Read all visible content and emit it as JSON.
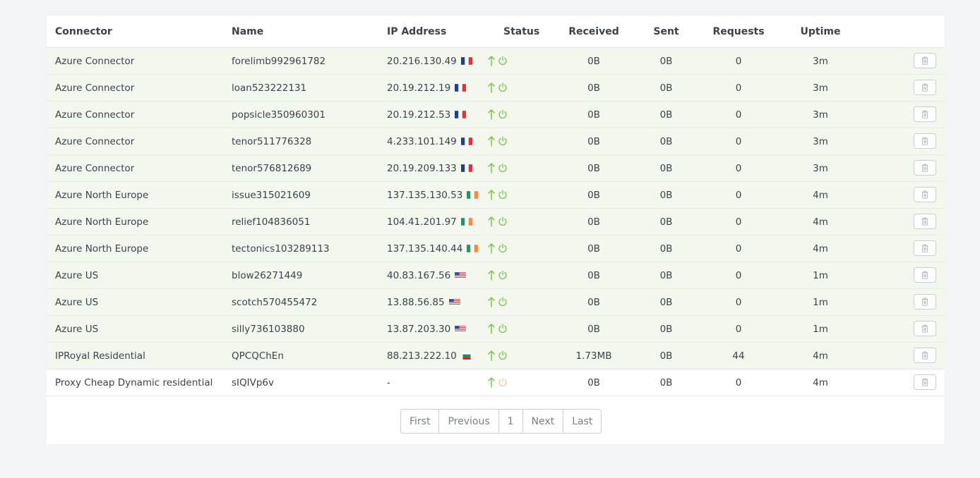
{
  "table": {
    "headers": {
      "connector": "Connector",
      "name": "Name",
      "ip": "IP Address",
      "status": "Status",
      "received": "Received",
      "sent": "Sent",
      "requests": "Requests",
      "uptime": "Uptime"
    },
    "rows": [
      {
        "connector": "Azure Connector",
        "name": "forelimb992961782",
        "ip": "20.216.130.49",
        "flag": "fr",
        "received": "0B",
        "sent": "0B",
        "requests": "0",
        "uptime": "3m",
        "active": true
      },
      {
        "connector": "Azure Connector",
        "name": "loan523222131",
        "ip": "20.19.212.19",
        "flag": "fr",
        "received": "0B",
        "sent": "0B",
        "requests": "0",
        "uptime": "3m",
        "active": true
      },
      {
        "connector": "Azure Connector",
        "name": "popsicle350960301",
        "ip": "20.19.212.53",
        "flag": "fr",
        "received": "0B",
        "sent": "0B",
        "requests": "0",
        "uptime": "3m",
        "active": true
      },
      {
        "connector": "Azure Connector",
        "name": "tenor511776328",
        "ip": "4.233.101.149",
        "flag": "fr",
        "received": "0B",
        "sent": "0B",
        "requests": "0",
        "uptime": "3m",
        "active": true
      },
      {
        "connector": "Azure Connector",
        "name": "tenor576812689",
        "ip": "20.19.209.133",
        "flag": "fr",
        "received": "0B",
        "sent": "0B",
        "requests": "0",
        "uptime": "3m",
        "active": true
      },
      {
        "connector": "Azure North Europe",
        "name": "issue315021609",
        "ip": "137.135.130.53",
        "flag": "ie",
        "received": "0B",
        "sent": "0B",
        "requests": "0",
        "uptime": "4m",
        "active": true
      },
      {
        "connector": "Azure North Europe",
        "name": "relief104836051",
        "ip": "104.41.201.97",
        "flag": "ie",
        "received": "0B",
        "sent": "0B",
        "requests": "0",
        "uptime": "4m",
        "active": true
      },
      {
        "connector": "Azure North Europe",
        "name": "tectonics103289113",
        "ip": "137.135.140.44",
        "flag": "ie",
        "received": "0B",
        "sent": "0B",
        "requests": "0",
        "uptime": "4m",
        "active": true
      },
      {
        "connector": "Azure US",
        "name": "blow26271449",
        "ip": "40.83.167.56",
        "flag": "us",
        "received": "0B",
        "sent": "0B",
        "requests": "0",
        "uptime": "1m",
        "active": true
      },
      {
        "connector": "Azure US",
        "name": "scotch570455472",
        "ip": "13.88.56.85",
        "flag": "us",
        "received": "0B",
        "sent": "0B",
        "requests": "0",
        "uptime": "1m",
        "active": true
      },
      {
        "connector": "Azure US",
        "name": "silly736103880",
        "ip": "13.87.203.30",
        "flag": "us",
        "received": "0B",
        "sent": "0B",
        "requests": "0",
        "uptime": "1m",
        "active": true
      },
      {
        "connector": "IPRoyal Residential",
        "name": "QPCQChEn",
        "ip": "88.213.222.10",
        "flag": "bg",
        "received": "1.73MB",
        "sent": "0B",
        "requests": "44",
        "uptime": "4m",
        "active": true
      },
      {
        "connector": "Proxy Cheap Dynamic residential",
        "name": "sIQIVp6v",
        "ip": "-",
        "flag": "",
        "received": "0B",
        "sent": "0B",
        "requests": "0",
        "uptime": "4m",
        "active": false
      }
    ]
  },
  "pagination": {
    "first": "First",
    "previous": "Previous",
    "current": "1",
    "next": "Next",
    "last": "Last"
  },
  "icons": {
    "status_up": "arrow-up-icon",
    "power": "power-icon",
    "delete": "trash-icon"
  },
  "colors": {
    "active_row": "#f3f8ee",
    "status_green": "#7cc44a",
    "power_inactive": "#f5c9a0"
  }
}
